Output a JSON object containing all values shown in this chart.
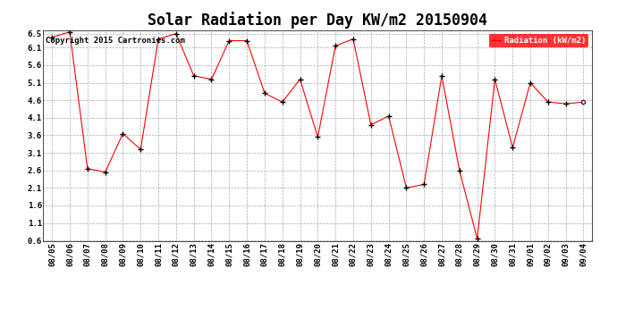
{
  "title": "Solar Radiation per Day KW/m2 20150904",
  "legend_label": "Radiation (kW/m2)",
  "copyright_text": "Copyright 2015 Cartronics.com",
  "dates": [
    "08/05",
    "08/06",
    "08/07",
    "08/08",
    "08/09",
    "08/10",
    "08/11",
    "08/12",
    "08/13",
    "08/14",
    "08/15",
    "08/16",
    "08/17",
    "08/18",
    "08/19",
    "08/20",
    "08/21",
    "08/22",
    "08/23",
    "08/24",
    "08/25",
    "08/26",
    "08/27",
    "08/28",
    "08/29",
    "08/30",
    "08/31",
    "09/01",
    "09/02",
    "09/03",
    "09/04"
  ],
  "values": [
    6.4,
    6.55,
    2.65,
    2.55,
    3.65,
    3.2,
    6.35,
    6.5,
    5.3,
    5.2,
    6.3,
    6.3,
    4.8,
    4.55,
    5.2,
    3.55,
    6.15,
    6.35,
    3.9,
    4.15,
    2.1,
    2.2,
    5.3,
    2.6,
    0.65,
    5.2,
    3.25,
    5.1,
    4.55,
    4.5,
    4.55
  ],
  "line_color": "red",
  "marker_color": "black",
  "bg_color": "white",
  "grid_color": "#aaaaaa",
  "legend_bg": "red",
  "legend_text_color": "white",
  "ylim_min": 0.6,
  "ylim_max": 6.5,
  "yticks": [
    0.6,
    1.1,
    1.6,
    2.1,
    2.6,
    3.1,
    3.6,
    4.1,
    4.6,
    5.1,
    5.6,
    6.1,
    6.5
  ],
  "ytick_labels": [
    "0.6",
    "1.1",
    "1.6",
    "2.1",
    "2.6",
    "3.1",
    "3.6",
    "4.1",
    "4.6",
    "5.1",
    "5.6",
    "6.1",
    "6.5"
  ],
  "title_fontsize": 12,
  "tick_fontsize": 6.5,
  "copyright_fontsize": 6.5
}
